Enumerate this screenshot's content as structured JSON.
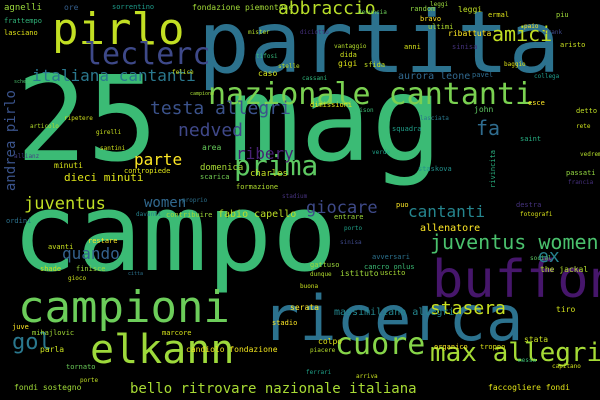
{
  "words": [
    {
      "text": "25 mag",
      "color": "#3bbb75"
    },
    {
      "text": "campo",
      "color": "#3bbb75"
    },
    {
      "text": "partita",
      "color": "#2c728e"
    },
    {
      "text": "ricerca",
      "color": "#2c728e"
    },
    {
      "text": "buffon",
      "color": "#46166b"
    },
    {
      "text": "campioni",
      "color": "#6ccd5a"
    },
    {
      "text": "elkann",
      "color": "#9dd93b"
    },
    {
      "text": "pirlo",
      "color": "#c2df23"
    },
    {
      "text": "nazionale cantanti",
      "color": "#7ad151"
    },
    {
      "text": "leclerc",
      "color": "#3e4989"
    },
    {
      "text": "prima",
      "color": "#5ec962"
    },
    {
      "text": "cuore",
      "color": "#86d549"
    },
    {
      "text": "max allegri",
      "color": "#a5db36"
    },
    {
      "text": "gol",
      "color": "#2a788e"
    },
    {
      "text": "juventus women",
      "color": "#4ac16d"
    },
    {
      "text": "stasera",
      "color": "#c8e020"
    },
    {
      "text": "testa allegri",
      "color": "#3b528b"
    },
    {
      "text": "abbraccio",
      "color": "#b8de29"
    },
    {
      "text": "amici",
      "color": "#c2df23"
    },
    {
      "text": "italiana cantanti",
      "color": "#2a788e"
    },
    {
      "text": "nedved",
      "color": "#3f4889"
    },
    {
      "text": "ribery",
      "color": "#482173"
    },
    {
      "text": "parte",
      "color": "#fde725"
    },
    {
      "text": "juventus",
      "color": "#c0df25"
    },
    {
      "text": "women",
      "color": "#31688e"
    },
    {
      "text": "giocare",
      "color": "#3e4a89"
    },
    {
      "text": "cantanti",
      "color": "#25858e"
    },
    {
      "text": "quando",
      "color": "#34618d"
    },
    {
      "text": "andrea pirlo",
      "color": "#3a538b"
    },
    {
      "text": "fa",
      "color": "#2f6c8e"
    },
    {
      "text": "ex",
      "color": "#26818e"
    },
    {
      "text": "bello ritrovare nazionale italiana",
      "color": "#a8db34"
    },
    {
      "text": "dieci minuti",
      "color": "#dde318"
    },
    {
      "text": "fabio capello",
      "color": "#bddf26"
    },
    {
      "text": "allenatore",
      "color": "#fde725"
    },
    {
      "text": "aurora leone",
      "color": "#31688e"
    },
    {
      "text": "massimiliano allegri",
      "color": "#24868e"
    },
    {
      "text": "fondazione piemontese",
      "color": "#a2da37"
    },
    {
      "text": "agnelli",
      "color": "#9bd93c"
    },
    {
      "text": "sorrentino",
      "color": "#1e9b8a"
    },
    {
      "text": "ore",
      "color": "#355f8d"
    },
    {
      "text": "frattempo",
      "color": "#31b57b"
    },
    {
      "text": "lasciano",
      "color": "#e2e418"
    },
    {
      "text": "leggi",
      "color": "#c0df25"
    },
    {
      "text": "random",
      "color": "#90d743"
    },
    {
      "text": "denuncia",
      "color": "#6ece58"
    },
    {
      "text": "mister",
      "color": "#b2dd2d"
    },
    {
      "text": "vantaggio",
      "color": "#b5de2b"
    },
    {
      "text": "diciotto",
      "color": "#46307e"
    },
    {
      "text": "minuti",
      "color": "#d8e219"
    },
    {
      "text": "contropiede",
      "color": "#dde318"
    },
    {
      "text": "charles",
      "color": "#c2df23"
    },
    {
      "text": "domenica",
      "color": "#a8db34"
    },
    {
      "text": "scarica",
      "color": "#75d054"
    },
    {
      "text": "area",
      "color": "#67cc5c"
    },
    {
      "text": "santini",
      "color": "#d0e11c"
    },
    {
      "text": "girelli",
      "color": "#cae11f"
    },
    {
      "text": "campione",
      "color": "#a5db36"
    },
    {
      "text": "felice",
      "color": "#cde11d"
    },
    {
      "text": "caso",
      "color": "#d2e21b"
    },
    {
      "text": "stelle",
      "color": "#bddf26"
    },
    {
      "text": "pavel",
      "color": "#2f6c8e"
    },
    {
      "text": "john",
      "color": "#5ec962"
    },
    {
      "text": "squadra",
      "color": "#1f9e89"
    },
    {
      "text": "stadium",
      "color": "#46327e"
    },
    {
      "text": "formazione",
      "color": "#b0dd2f"
    },
    {
      "text": "contribuire",
      "color": "#a0da39"
    },
    {
      "text": "proprio",
      "color": "#2d718e"
    },
    {
      "text": "davanti",
      "color": "#26828e"
    },
    {
      "text": "entrare",
      "color": "#9fda3a"
    },
    {
      "text": "porto",
      "color": "#1fa188"
    },
    {
      "text": "puo",
      "color": "#fde725"
    },
    {
      "text": "destra",
      "color": "#46337f"
    },
    {
      "text": "fotografi",
      "color": "#d8e219"
    },
    {
      "text": "avversari",
      "color": "#2c728e"
    },
    {
      "text": "cancro onlus",
      "color": "#3bbb75"
    },
    {
      "text": "istituto",
      "color": "#9fda3a"
    },
    {
      "text": "uscito",
      "color": "#a8db34"
    },
    {
      "text": "the jackal",
      "color": "#b2dd2d"
    },
    {
      "text": "social",
      "color": "#5cc863"
    },
    {
      "text": "tiro",
      "color": "#d2e21b"
    },
    {
      "text": "dunque",
      "color": "#b2dd2d"
    },
    {
      "text": "gattuso",
      "color": "#9dd93b"
    },
    {
      "text": "serata",
      "color": "#fde725"
    },
    {
      "text": "colpo",
      "color": "#dde318"
    },
    {
      "text": "piacere",
      "color": "#b5de2b"
    },
    {
      "text": "candiolo fondazione",
      "color": "#f1e51d"
    },
    {
      "text": "marcore",
      "color": "#d5e21a"
    },
    {
      "text": "mihajlovic",
      "color": "#a2da37"
    },
    {
      "text": "juve",
      "color": "#fde725"
    },
    {
      "text": "gioco",
      "color": "#cde11d"
    },
    {
      "text": "shade",
      "color": "#c8e020"
    },
    {
      "text": "finisce",
      "color": "#9dd93b"
    },
    {
      "text": "restare",
      "color": "#fde725"
    },
    {
      "text": "avanti",
      "color": "#cae11f"
    },
    {
      "text": "ordini",
      "color": "#2c728e"
    },
    {
      "text": "parla",
      "color": "#cae11f"
    },
    {
      "text": "tornato",
      "color": "#6ccd5a"
    },
    {
      "text": "fondi sostegno",
      "color": "#a0da39"
    },
    {
      "text": "ferrari",
      "color": "#1fa088"
    },
    {
      "text": "faccogliere fondi",
      "color": "#e2e418"
    },
    {
      "text": "arriva",
      "color": "#c8e020"
    },
    {
      "text": "bravo",
      "color": "#fde725"
    },
    {
      "text": "ultimi",
      "color": "#b2dd2d"
    },
    {
      "text": "troppo",
      "color": "#dde318"
    },
    {
      "text": "organico",
      "color": "#fde725"
    },
    {
      "text": "stata",
      "color": "#c8e020"
    },
    {
      "text": "capitano",
      "color": "#d0e11c"
    },
    {
      "text": "detto",
      "color": "#c0df25"
    },
    {
      "text": "passati",
      "color": "#93d741"
    },
    {
      "text": "sinisa",
      "color": "#46327e"
    },
    {
      "text": "allianz",
      "color": "#433e85"
    },
    {
      "text": "articolo",
      "color": "#b5de2b"
    },
    {
      "text": "ripetere",
      "color": "#d0e11c"
    },
    {
      "text": "dimissioni",
      "color": "#e7e419"
    },
    {
      "text": "gigi",
      "color": "#dde318"
    },
    {
      "text": "anni",
      "color": "#d5e21a"
    },
    {
      "text": "dida",
      "color": "#cde11d"
    },
    {
      "text": "ribattuta",
      "color": "#fde725"
    },
    {
      "text": "ermal",
      "color": "#dde318"
    },
    {
      "text": "aristo",
      "color": "#c8e020"
    },
    {
      "text": "leggi",
      "color": "#9bd93c"
    },
    {
      "text": "cassani",
      "color": "#31b57b"
    },
    {
      "text": "sfida",
      "color": "#c2df23"
    },
    {
      "text": "tifosi",
      "color": "#35b779"
    },
    {
      "text": "maison",
      "color": "#3bbb75"
    },
    {
      "text": "scheda",
      "color": "#4ac16d"
    },
    {
      "text": "lasciata",
      "color": "#2a788e"
    },
    {
      "text": "collega",
      "color": "#1e9b8a"
    },
    {
      "text": "esce",
      "color": "#fde725"
    },
    {
      "text": "rivincita",
      "color": "#29af7f"
    },
    {
      "text": "staskova",
      "color": "#21918c"
    },
    {
      "text": "francia",
      "color": "#46307e"
    },
    {
      "text": "verde",
      "color": "#1fa188"
    },
    {
      "text": "saint",
      "color": "#27ad81"
    },
    {
      "text": "citta",
      "color": "#2c728e"
    },
    {
      "text": "sinisa",
      "color": "#3e4989"
    },
    {
      "text": "buona",
      "color": "#cae11f"
    },
    {
      "text": "paio",
      "color": "#fde725"
    },
    {
      "text": "trank",
      "color": "#3f4889"
    },
    {
      "text": "piu",
      "color": "#a0da39"
    },
    {
      "text": "baggio",
      "color": "#dde318"
    },
    {
      "text": "messa",
      "color": "#3bbb75"
    },
    {
      "text": "rete",
      "color": "#cde11d"
    },
    {
      "text": "vedremo",
      "color": "#b5de2b"
    },
    {
      "text": "porte",
      "color": "#c0df25"
    },
    {
      "text": "stadio",
      "color": "#fde725"
    }
  ]
}
